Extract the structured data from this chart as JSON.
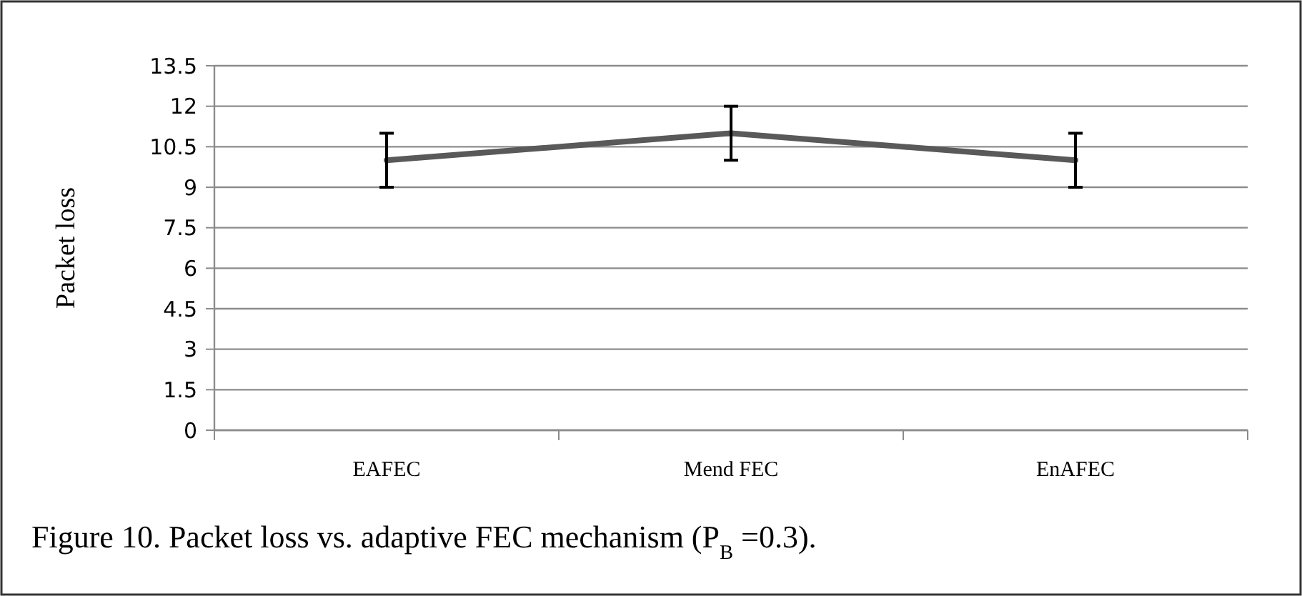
{
  "chart_data": {
    "type": "line",
    "ylabel": "Packet loss",
    "categories": [
      "EAFEC",
      "Mend FEC",
      "EnAFEC"
    ],
    "series": [
      {
        "color": "#595959",
        "values": [
          10,
          11,
          10
        ],
        "errors": [
          1,
          1,
          1
        ]
      }
    ],
    "ylim": [
      0,
      13.5
    ],
    "yticks": [
      0,
      1.5,
      3,
      4.5,
      6,
      7.5,
      9,
      10.5,
      12,
      13.5
    ],
    "grid": "y",
    "marker": "none",
    "line_style": "solid",
    "annotations": [
      "Figure 10. Packet loss vs. adaptive FEC mechanism (P$_{B}$ =0.3)."
    ]
  }
}
